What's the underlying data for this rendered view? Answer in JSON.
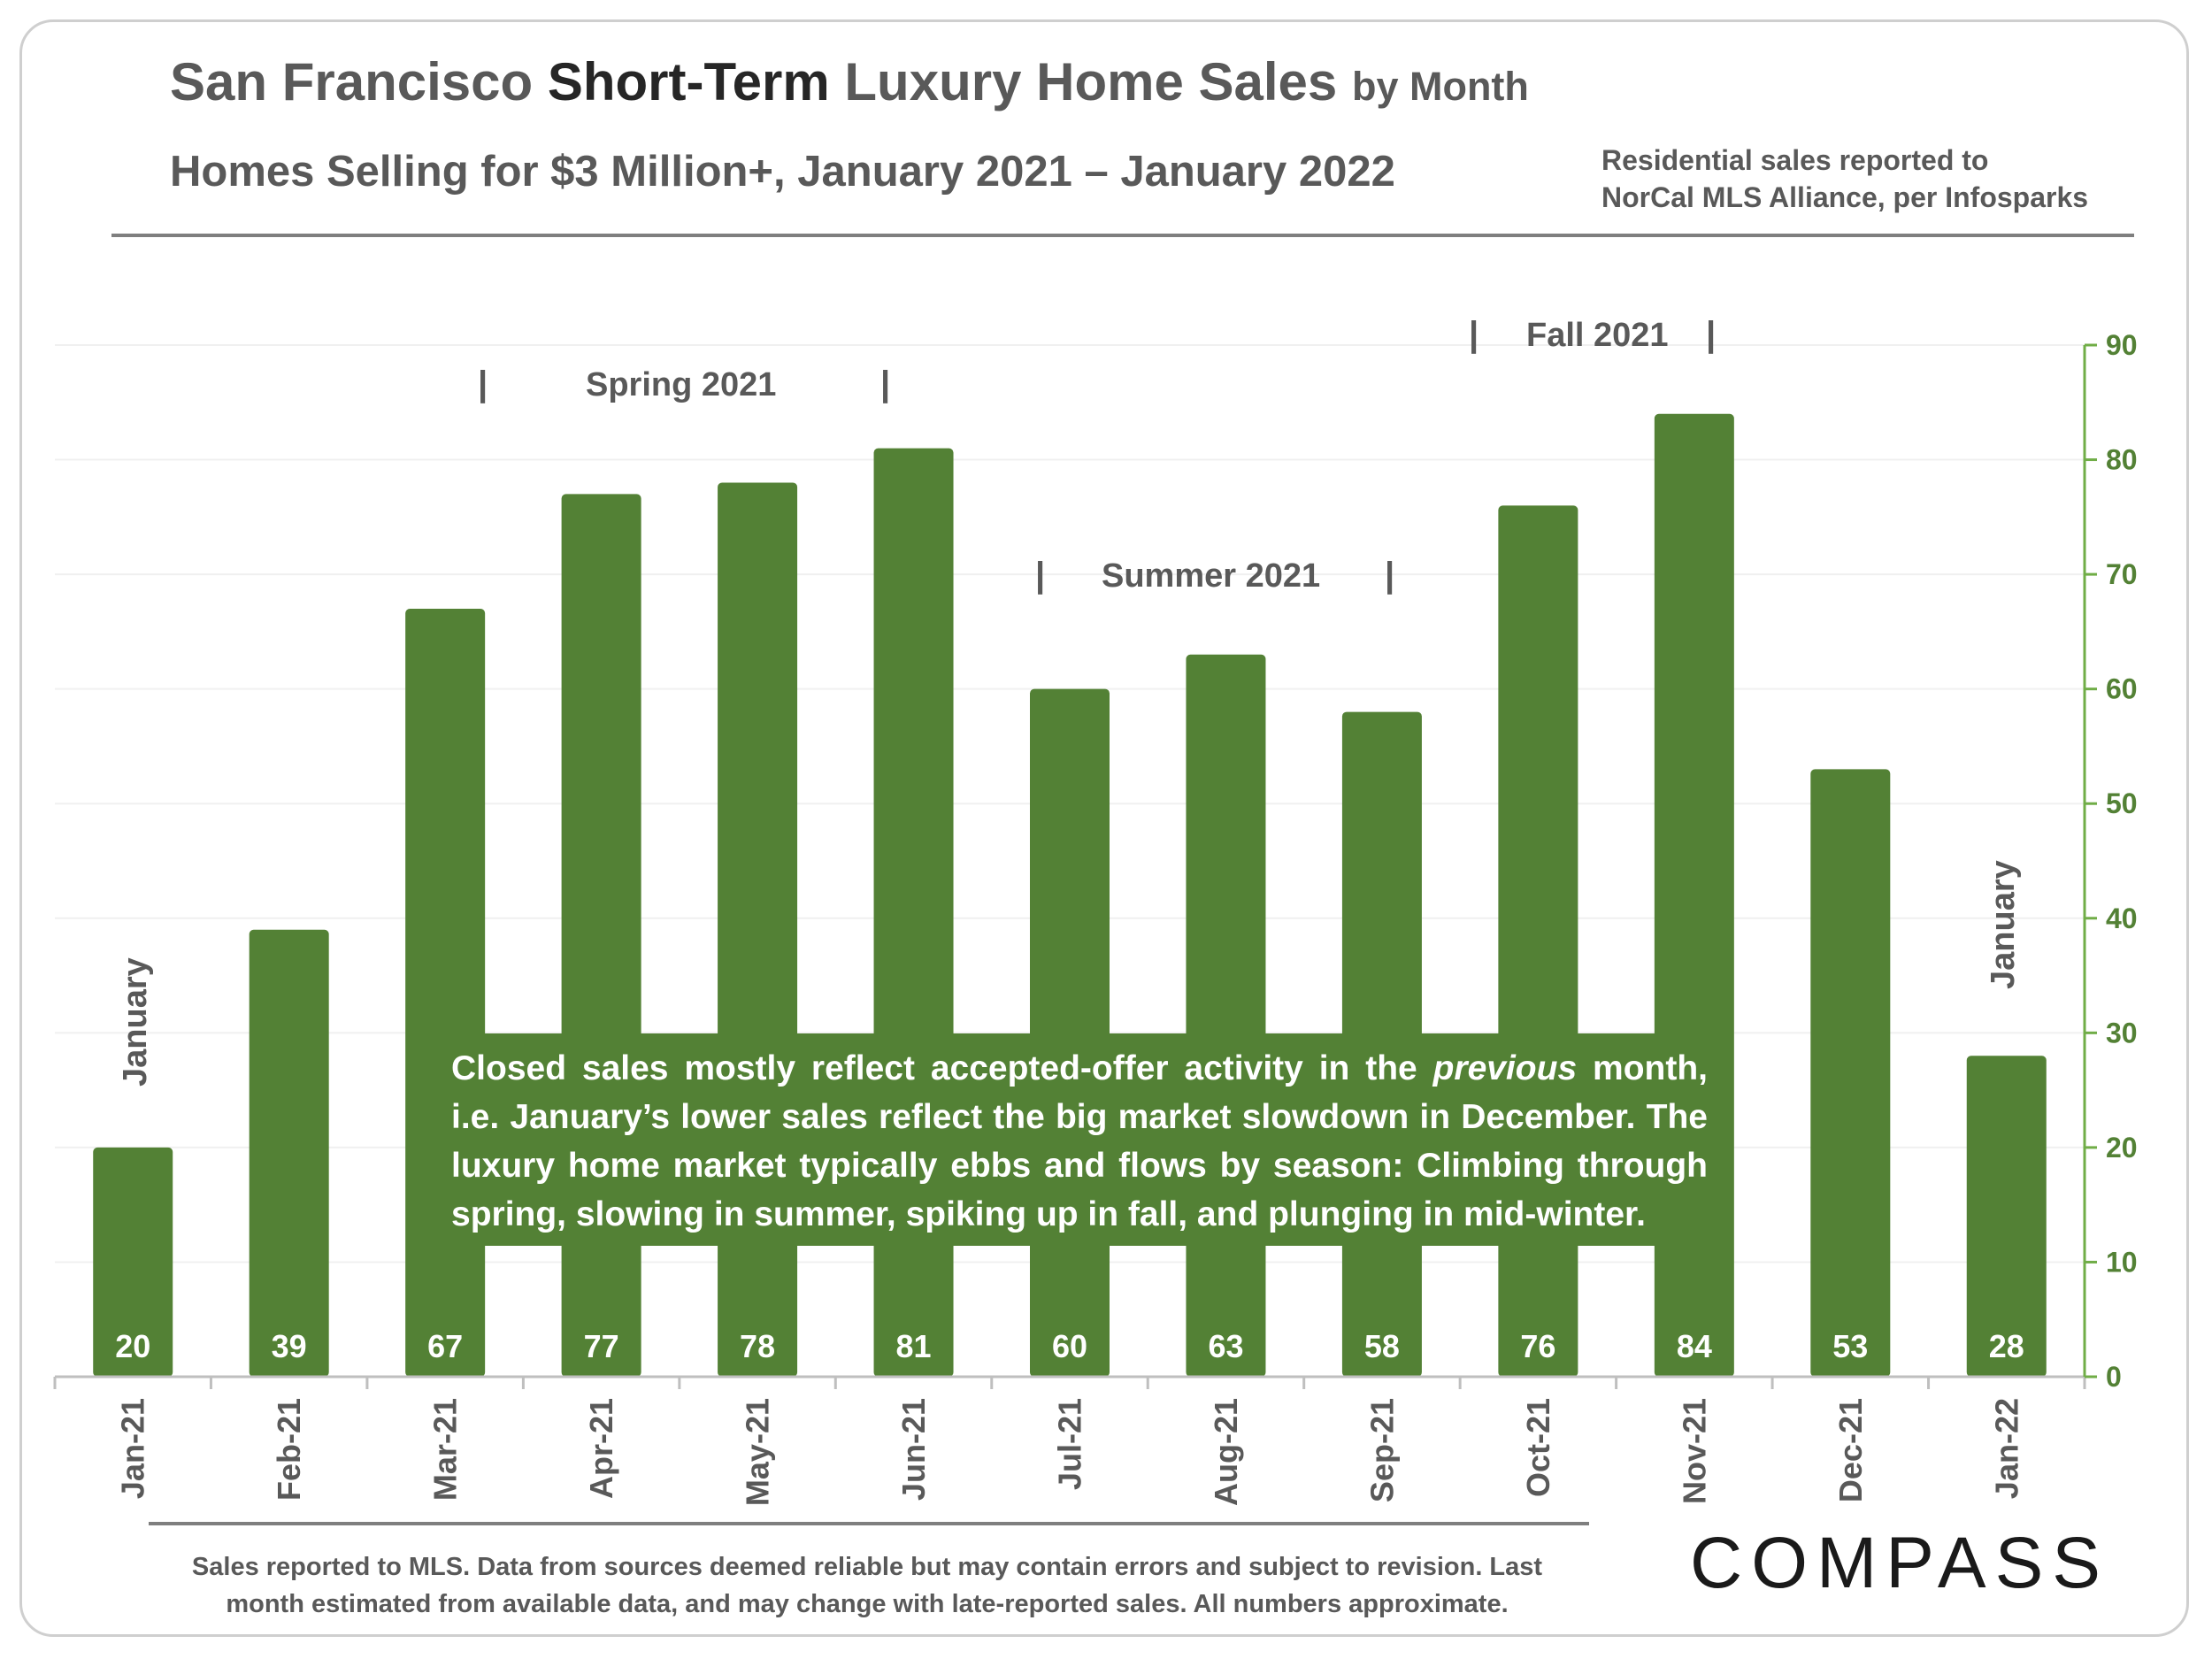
{
  "header": {
    "title_part1": "San Francisco ",
    "title_part2": "Short-Term",
    "title_part3": " Luxury Home Sales ",
    "title_part4": "by Month",
    "subtitle": "Homes Selling for $3 Million+, January 2021 – January 2022",
    "source_line1": "Residential sales reported to",
    "source_line2": "NorCal MLS Alliance, per Infosparks"
  },
  "seasons": {
    "spring": "Spring 2021",
    "summer": "Summer 2021",
    "fall": "Fall 2021",
    "pipe": "|"
  },
  "annotations": {
    "january_left": "January",
    "january_right": "January",
    "note_part1": "Closed sales mostly reflect accepted-offer activity in the ",
    "note_italic": "previous",
    "note_part2": " month, i.e. January’s lower sales reflect the big market slowdown in December. The luxury home market typically ebbs and flows by season: Climbing through spring, slowing in summer, spiking up in fall, and plunging in mid-winter."
  },
  "footer": {
    "line1": "Sales reported to MLS. Data from sources deemed reliable but may contain errors and subject to revision.  Last",
    "line2": "month estimated from available data, and may change with late-reported sales. All numbers approximate.",
    "logo": "COMPASS"
  },
  "colors": {
    "bar": "#538135",
    "axis": "#70AD47",
    "tick_text": "#538135",
    "label_text": "#595959"
  },
  "chart_data": {
    "type": "bar",
    "title": "San Francisco Short-Term Luxury Home Sales by Month",
    "subtitle": "Homes Selling for $3 Million+, January 2021 – January 2022",
    "categories": [
      "Jan-21",
      "Feb-21",
      "Mar-21",
      "Apr-21",
      "May-21",
      "Jun-21",
      "Jul-21",
      "Aug-21",
      "Sep-21",
      "Oct-21",
      "Nov-21",
      "Dec-21",
      "Jan-22"
    ],
    "values": [
      20,
      39,
      67,
      77,
      78,
      81,
      60,
      63,
      58,
      76,
      84,
      53,
      28
    ],
    "ylim": [
      0,
      90
    ],
    "yticks": [
      0,
      10,
      20,
      30,
      40,
      50,
      60,
      70,
      80,
      90
    ],
    "y_axis_side": "right",
    "xlabel": "",
    "ylabel": "",
    "grid": true,
    "data_labels": "inside-bottom"
  }
}
